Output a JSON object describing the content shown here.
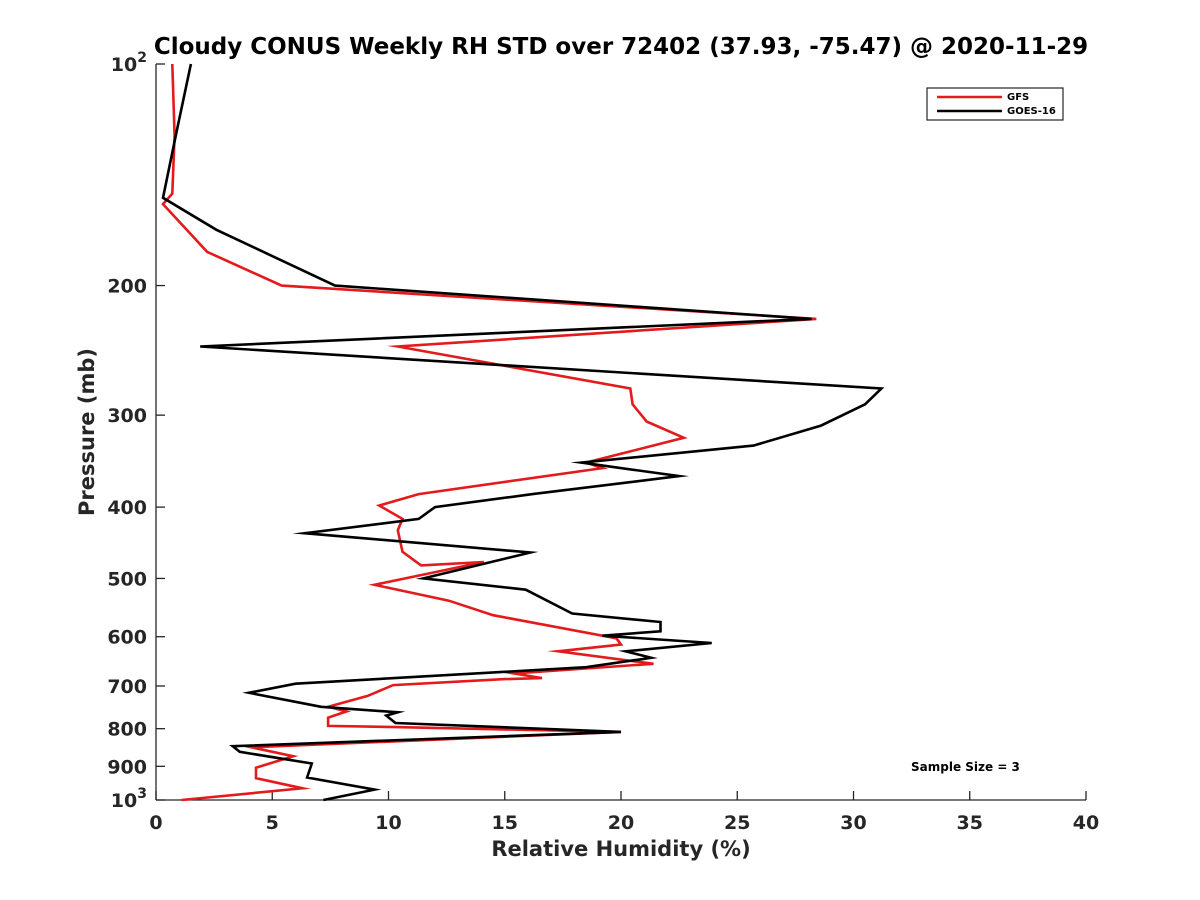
{
  "chart_data": {
    "type": "line",
    "title": "Cloudy CONUS Weekly RH STD over 72402 (37.93, -75.47) @ 2020-11-29",
    "xlabel": "Relative Humidity (%)",
    "ylabel": "Pressure (mb)",
    "xlim": [
      0,
      40
    ],
    "ylim": [
      100,
      1000
    ],
    "y_scale": "log",
    "y_reversed": true,
    "grid": false,
    "legend_position": "top-right",
    "x_ticks": [
      "0",
      "5",
      "10",
      "15",
      "20",
      "25",
      "30",
      "35",
      "40"
    ],
    "y_ticks": [
      {
        "value": 100,
        "base": "10",
        "exp": "2"
      },
      {
        "value": 200,
        "label": "200"
      },
      {
        "value": 300,
        "label": "300"
      },
      {
        "value": 400,
        "label": "400"
      },
      {
        "value": 500,
        "label": "500"
      },
      {
        "value": 600,
        "label": "600"
      },
      {
        "value": 700,
        "label": "700"
      },
      {
        "value": 800,
        "label": "800"
      },
      {
        "value": 900,
        "label": "900"
      },
      {
        "value": 1000,
        "base": "10",
        "exp": "3"
      }
    ],
    "series": [
      {
        "name": "GFS",
        "color": "#e41a1c",
        "points": [
          [
            0.7,
            100
          ],
          [
            0.8,
            125
          ],
          [
            0.7,
            150
          ],
          [
            0.3,
            155
          ],
          [
            2.2,
            180
          ],
          [
            5.4,
            200
          ],
          [
            28.4,
            222
          ],
          [
            10.4,
            242
          ],
          [
            20.4,
            276
          ],
          [
            20.5,
            290
          ],
          [
            21.1,
            306
          ],
          [
            22.7,
            322
          ],
          [
            18.5,
            348
          ],
          [
            19.2,
            354
          ],
          [
            11.3,
            384
          ],
          [
            9.6,
            398
          ],
          [
            10.6,
            415
          ],
          [
            10.4,
            430
          ],
          [
            10.6,
            460
          ],
          [
            11.4,
            480
          ],
          [
            14.1,
            475
          ],
          [
            9.4,
            510
          ],
          [
            12.6,
            536
          ],
          [
            14.5,
            561
          ],
          [
            19.8,
            603
          ],
          [
            20.0,
            615
          ],
          [
            17.3,
            628
          ],
          [
            21.4,
            653
          ],
          [
            15.4,
            673
          ],
          [
            16.6,
            683
          ],
          [
            15.0,
            685
          ],
          [
            10.2,
            698
          ],
          [
            9.1,
            722
          ],
          [
            7.4,
            747
          ],
          [
            8.2,
            758
          ],
          [
            7.4,
            773
          ],
          [
            7.4,
            793
          ],
          [
            10.3,
            796
          ],
          [
            20.0,
            808
          ],
          [
            4.1,
            848
          ],
          [
            5.9,
            872
          ],
          [
            4.3,
            904
          ],
          [
            4.3,
            934
          ],
          [
            6.3,
            964
          ],
          [
            1.1,
            1000
          ]
        ]
      },
      {
        "name": "GOES-16",
        "color": "#000000",
        "points": [
          [
            1.5,
            100
          ],
          [
            0.9,
            123
          ],
          [
            0.3,
            152
          ],
          [
            2.6,
            168
          ],
          [
            7.7,
            200
          ],
          [
            28.2,
            222
          ],
          [
            1.9,
            242
          ],
          [
            31.2,
            276
          ],
          [
            30.5,
            290
          ],
          [
            28.6,
            310
          ],
          [
            25.7,
            330
          ],
          [
            18.3,
            348
          ],
          [
            22.5,
            363
          ],
          [
            16.2,
            384
          ],
          [
            12.0,
            400
          ],
          [
            11.3,
            415
          ],
          [
            6.4,
            434
          ],
          [
            16.1,
            461
          ],
          [
            11.5,
            500
          ],
          [
            15.9,
            518
          ],
          [
            17.9,
            558
          ],
          [
            21.7,
            573
          ],
          [
            21.7,
            590
          ],
          [
            19.2,
            598
          ],
          [
            23.9,
            612
          ],
          [
            20.2,
            628
          ],
          [
            21.3,
            641
          ],
          [
            18.5,
            660
          ],
          [
            6.0,
            695
          ],
          [
            4.0,
            715
          ],
          [
            7.1,
            747
          ],
          [
            10.4,
            760
          ],
          [
            9.9,
            768
          ],
          [
            10.3,
            786
          ],
          [
            20.0,
            808
          ],
          [
            3.3,
            845
          ],
          [
            3.6,
            860
          ],
          [
            6.7,
            892
          ],
          [
            6.5,
            932
          ],
          [
            9.4,
            968
          ],
          [
            7.2,
            1000
          ]
        ]
      }
    ],
    "legend": [
      "GFS",
      "GOES-16"
    ],
    "annotation": "Sample Size = 3"
  }
}
